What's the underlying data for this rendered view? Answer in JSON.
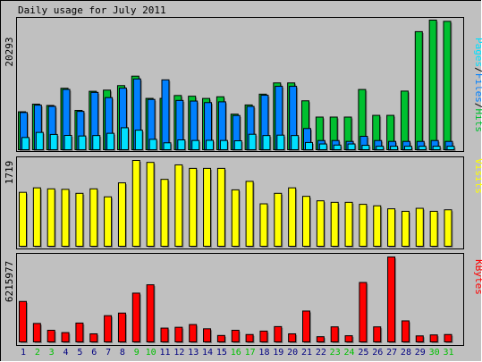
{
  "chart_data": [
    {
      "type": "bar",
      "title": "Daily usage for July 2011",
      "ytick": "20293",
      "ylim": [
        0,
        20293
      ],
      "legend": {
        "pages": "Pages",
        "files": "Files",
        "hits": "Hits",
        "sep": "/"
      },
      "categories": [
        "1",
        "2",
        "3",
        "4",
        "5",
        "6",
        "7",
        "8",
        "9",
        "10",
        "11",
        "12",
        "13",
        "14",
        "15",
        "16",
        "17",
        "18",
        "19",
        "20",
        "21",
        "22",
        "23",
        "24",
        "25",
        "26",
        "27",
        "28",
        "29",
        "30",
        "31"
      ],
      "weekend_days": [
        "2",
        "3",
        "9",
        "10",
        "16",
        "17",
        "23",
        "24",
        "30",
        "31"
      ],
      "series": [
        {
          "name": "Hits",
          "values": [
            5940,
            7130,
            6930,
            9620,
            6160,
            9150,
            9330,
            10040,
            11520,
            8040,
            8040,
            8490,
            8380,
            8030,
            8290,
            5570,
            7010,
            8700,
            10460,
            10460,
            7660,
            5110,
            5110,
            5110,
            9430,
            5380,
            5380,
            9180,
            18490,
            20293,
            20100
          ]
        },
        {
          "name": "Files",
          "values": [
            5830,
            6980,
            6790,
            9440,
            6000,
            8980,
            8160,
            9640,
            11080,
            7880,
            10940,
            7720,
            7620,
            7380,
            7500,
            5360,
            6780,
            8530,
            9930,
            9930,
            3320,
            1440,
            1440,
            1300,
            2100,
            1440,
            1300,
            1300,
            1300,
            1440,
            1300
          ]
        },
        {
          "name": "Pages",
          "values": [
            1910,
            2710,
            2390,
            2240,
            2150,
            2220,
            2570,
            3440,
            3060,
            1630,
            1080,
            1540,
            1450,
            1470,
            1450,
            1400,
            2420,
            2220,
            2280,
            2220,
            1130,
            900,
            730,
            900,
            690,
            540,
            540,
            540,
            540,
            540,
            540
          ]
        }
      ]
    },
    {
      "type": "bar",
      "ytick": "1719",
      "ylim": [
        0,
        1719
      ],
      "series_label": "Visits",
      "categories": [
        "1",
        "2",
        "3",
        "4",
        "5",
        "6",
        "7",
        "8",
        "9",
        "10",
        "11",
        "12",
        "13",
        "14",
        "15",
        "16",
        "17",
        "18",
        "19",
        "20",
        "21",
        "22",
        "23",
        "24",
        "25",
        "26",
        "27",
        "28",
        "29",
        "30",
        "31"
      ],
      "series": [
        {
          "name": "Visits",
          "values": [
            1080,
            1170,
            1150,
            1140,
            1060,
            1150,
            990,
            1270,
            1719,
            1680,
            1340,
            1630,
            1560,
            1560,
            1560,
            1130,
            1300,
            850,
            1060,
            1170,
            1000,
            910,
            880,
            880,
            840,
            810,
            750,
            700,
            760,
            700,
            730
          ]
        }
      ]
    },
    {
      "type": "bar",
      "ytick": "6215977",
      "ylim": [
        0,
        6215977
      ],
      "series_label": "KBytes",
      "categories": [
        "1",
        "2",
        "3",
        "4",
        "5",
        "6",
        "7",
        "8",
        "9",
        "10",
        "11",
        "12",
        "13",
        "14",
        "15",
        "16",
        "17",
        "18",
        "19",
        "20",
        "21",
        "22",
        "23",
        "24",
        "25",
        "26",
        "27",
        "28",
        "29",
        "30",
        "31"
      ],
      "series": [
        {
          "name": "KBytes",
          "values": [
            2960000,
            1350000,
            850000,
            680000,
            1380000,
            590000,
            1920000,
            2110000,
            3570000,
            4180000,
            1010000,
            1070000,
            1270000,
            960000,
            470000,
            850000,
            540000,
            790000,
            1120000,
            590000,
            2260000,
            380000,
            1100000,
            450000,
            4350000,
            1100000,
            6215977,
            1540000,
            440000,
            510000,
            540000
          ]
        }
      ]
    }
  ],
  "colors": {
    "background": "#c0c0c0",
    "panel": "#c0c0c0",
    "hits": "#00c030",
    "files": "#0080ff",
    "pages": "#00e0ff",
    "visits": "#ffff00",
    "kbytes": "#ff0000",
    "weekday_label": "#000080",
    "weekend_label": "#00c000"
  }
}
